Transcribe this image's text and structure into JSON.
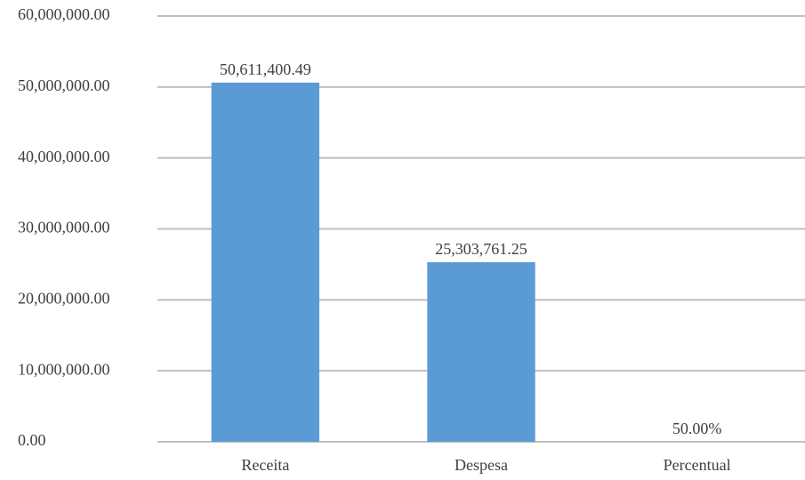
{
  "chart_data": {
    "type": "bar",
    "categories": [
      "Receita",
      "Despesa",
      "Percentual"
    ],
    "values": [
      50611400.49,
      25303761.25,
      50
    ],
    "value_labels": [
      "50,611,400.49",
      "25,303,761.25",
      "50.00%"
    ],
    "color": "#5b9bd5",
    "ylim": [
      0,
      60000000
    ],
    "yticks": [
      {
        "value": 0,
        "label": "0.00"
      },
      {
        "value": 10000000,
        "label": "10,000,000.00"
      },
      {
        "value": 20000000,
        "label": "20,000,000.00"
      },
      {
        "value": 30000000,
        "label": "30,000,000.00"
      },
      {
        "value": 40000000,
        "label": "40,000,000.00"
      },
      {
        "value": 50000000,
        "label": "50,000,000.00"
      },
      {
        "value": 60000000,
        "label": "60,000,000.00"
      }
    ],
    "grid": true
  }
}
